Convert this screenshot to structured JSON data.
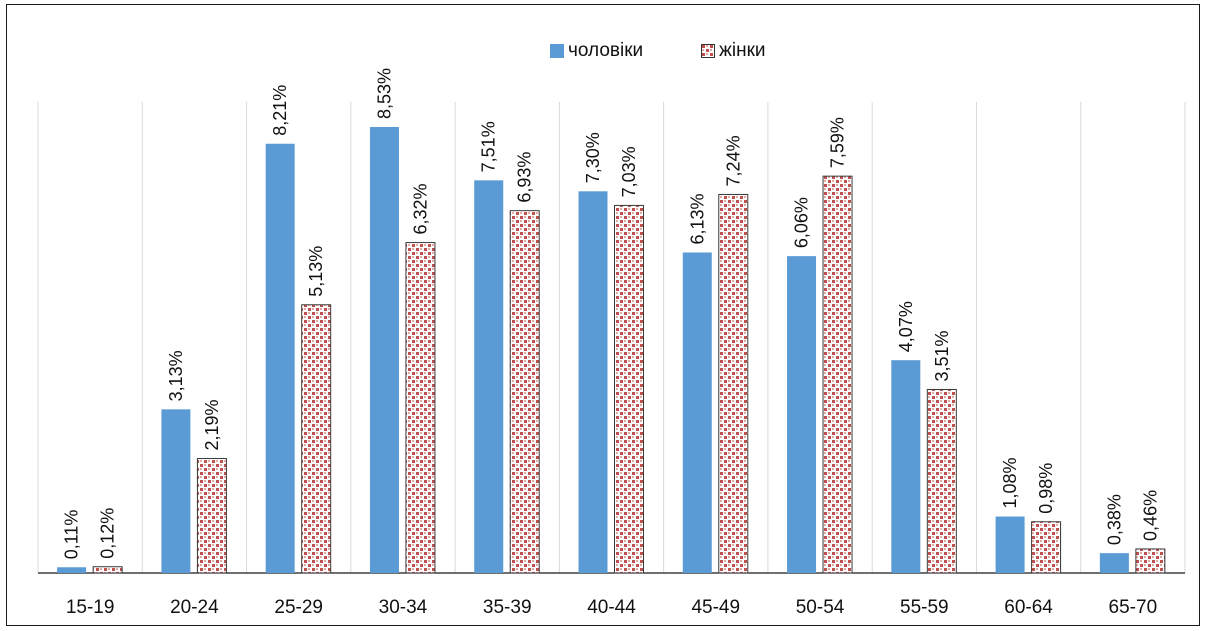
{
  "chart_data": {
    "type": "bar",
    "categories": [
      "15-19",
      "20-24",
      "25-29",
      "30-34",
      "35-39",
      "40-44",
      "45-49",
      "50-54",
      "55-59",
      "60-64",
      "65-70"
    ],
    "series": [
      {
        "name": "чоловіки",
        "values": [
          0.11,
          3.13,
          8.21,
          8.53,
          7.51,
          7.3,
          6.13,
          6.06,
          4.07,
          1.08,
          0.38
        ],
        "labels": [
          "0,11%",
          "3,13%",
          "8,21%",
          "8,53%",
          "7,51%",
          "7,30%",
          "6,13%",
          "6,06%",
          "4,07%",
          "1,08%",
          "0,38%"
        ],
        "color": "#5b9bd5",
        "pattern": "solid"
      },
      {
        "name": "жінки",
        "values": [
          0.12,
          2.19,
          5.13,
          6.32,
          6.93,
          7.03,
          7.24,
          7.59,
          3.51,
          0.98,
          0.46
        ],
        "labels": [
          "0,12%",
          "2,19%",
          "5,13%",
          "6,32%",
          "6,93%",
          "7,03%",
          "7,24%",
          "7,59%",
          "3,51%",
          "0,98%",
          "0,46%"
        ],
        "color": "#c0504d",
        "pattern": "dotted"
      }
    ],
    "ylim": [
      0,
      10
    ],
    "grid": "vertical-category-separators",
    "legend": "top-center",
    "title": "",
    "xlabel": "",
    "ylabel": ""
  }
}
